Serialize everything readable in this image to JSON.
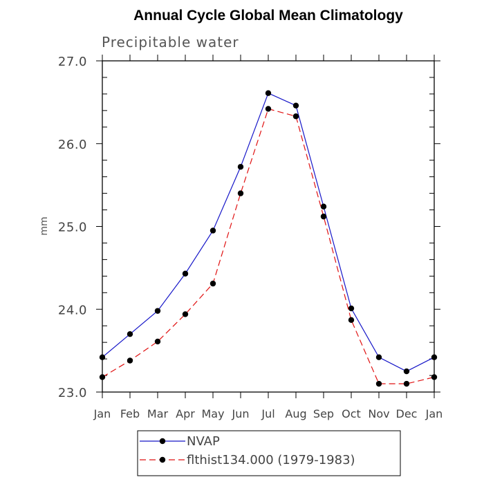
{
  "chart_data": {
    "type": "line",
    "title": "Annual Cycle Global Mean Climatology",
    "subtitle": "Precipitable water",
    "xlabel": "",
    "ylabel": "mm",
    "categories": [
      "Jan",
      "Feb",
      "Mar",
      "Apr",
      "May",
      "Jun",
      "Jul",
      "Aug",
      "Sep",
      "Oct",
      "Nov",
      "Dec",
      "Jan"
    ],
    "ylim": [
      23.0,
      27.0
    ],
    "yticks": [
      "23.0",
      "24.0",
      "25.0",
      "26.0",
      "27.0"
    ],
    "grid": false,
    "legend_position": "bottom",
    "series": [
      {
        "name": "NVAP",
        "color": "#1515c8",
        "line_style": "solid",
        "marker": "circle",
        "values": [
          23.42,
          23.7,
          23.98,
          24.43,
          24.95,
          25.72,
          26.61,
          26.46,
          25.24,
          24.01,
          23.42,
          23.25,
          23.42
        ]
      },
      {
        "name": "flthist134.000 (1979-1983)",
        "color": "#e01010",
        "line_style": "dashed",
        "marker": "circle",
        "values": [
          23.18,
          23.38,
          23.61,
          23.94,
          24.31,
          25.4,
          26.42,
          26.33,
          25.12,
          23.87,
          23.1,
          23.1,
          23.18
        ]
      }
    ]
  }
}
